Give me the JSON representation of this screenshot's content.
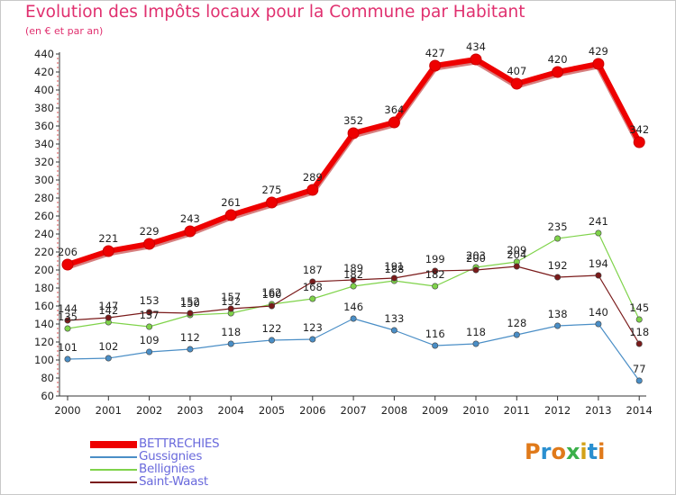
{
  "title": "Evolution des Impôts locaux pour la Commune par Habitant",
  "subtitle": "(en € et par an)",
  "logo": {
    "text": "Proxiti",
    "letter_colors": [
      "#e07a1a",
      "#2a8fd0",
      "#e07a1a",
      "#3bb04a",
      "#d4a21a",
      "#2a8fd0",
      "#e07a1a"
    ]
  },
  "chart_data": {
    "type": "line",
    "title": "Evolution des Impôts locaux pour la Commune par Habitant",
    "subtitle": "(en € et par an)",
    "x": [
      "2000",
      "2001",
      "2002",
      "2003",
      "2004",
      "2005",
      "2006",
      "2007",
      "2008",
      "2009",
      "2010",
      "2011",
      "2012",
      "2013",
      "2014"
    ],
    "ylim": [
      60,
      440
    ],
    "ytick_step": 20,
    "grid": false,
    "legend_position": "bottom-left",
    "series": [
      {
        "name": "BETTRECHIES",
        "color": "#ee0000",
        "values": [
          206,
          221,
          229,
          243,
          261,
          275,
          289,
          352,
          364,
          427,
          434,
          407,
          420,
          429,
          342
        ]
      },
      {
        "name": "Gussignies",
        "color": "#4a8ec6",
        "values": [
          101,
          102,
          109,
          112,
          118,
          122,
          123,
          146,
          133,
          116,
          118,
          128,
          138,
          140,
          77
        ]
      },
      {
        "name": "Bellignies",
        "color": "#7fd34a",
        "values": [
          135,
          142,
          137,
          150,
          152,
          162,
          168,
          182,
          188,
          182,
          203,
          209,
          235,
          241,
          145
        ]
      },
      {
        "name": "Saint-Waast",
        "color": "#7a1a1a",
        "values": [
          144,
          147,
          153,
          152,
          157,
          160,
          187,
          189,
          191,
          199,
          200,
          204,
          192,
          194,
          118
        ]
      }
    ],
    "data_labels": [
      [
        "206",
        "221",
        "229",
        "243",
        "261",
        "275",
        "289",
        "352",
        "364",
        "427",
        "434",
        "407",
        "420",
        "429",
        "342"
      ],
      [
        "101",
        "102",
        "109",
        "112",
        "118",
        "122",
        "123",
        "146",
        "133",
        "116",
        "118",
        "128",
        "138",
        "140",
        "77"
      ],
      [
        "135",
        "142",
        "137",
        "150",
        "152",
        "162",
        "168",
        "182",
        "188",
        "182",
        "203",
        "209",
        "235",
        "241",
        "145"
      ],
      [
        "144",
        "147",
        "153",
        "152",
        "157",
        "160",
        "187",
        "189",
        "191",
        "199",
        "200",
        "204",
        "192",
        "194",
        "118"
      ]
    ]
  }
}
